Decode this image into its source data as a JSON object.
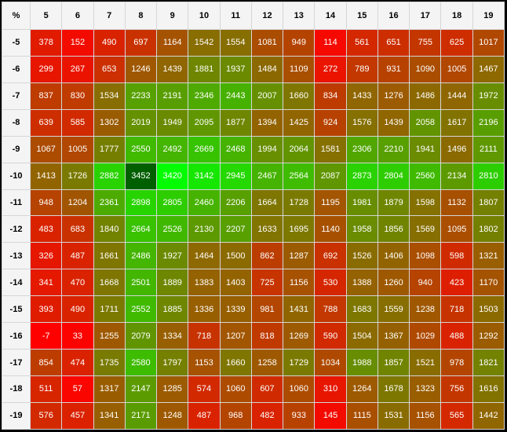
{
  "chart_data": {
    "type": "heatmap",
    "corner_label": "%",
    "x": [
      "5",
      "6",
      "7",
      "8",
      "9",
      "10",
      "11",
      "12",
      "13",
      "14",
      "15",
      "16",
      "17",
      "18",
      "19"
    ],
    "y": [
      "-5",
      "-6",
      "-7",
      "-8",
      "-9",
      "-10",
      "-11",
      "-12",
      "-13",
      "-14",
      "-15",
      "-16",
      "-17",
      "-18",
      "-19"
    ],
    "values": [
      [
        378,
        152,
        490,
        697,
        1164,
        1542,
        1554,
        1081,
        949,
        114,
        561,
        651,
        755,
        625,
        1017
      ],
      [
        299,
        267,
        653,
        1246,
        1439,
        1881,
        1937,
        1484,
        1109,
        272,
        789,
        931,
        1090,
        1005,
        1467
      ],
      [
        837,
        830,
        1534,
        2233,
        2191,
        2346,
        2443,
        2007,
        1660,
        834,
        1433,
        1276,
        1486,
        1444,
        1972
      ],
      [
        639,
        585,
        1302,
        2019,
        1949,
        2095,
        1877,
        1394,
        1425,
        924,
        1576,
        1439,
        2058,
        1617,
        2196
      ],
      [
        1067,
        1005,
        1777,
        2550,
        2492,
        2669,
        2468,
        1994,
        2064,
        1581,
        2306,
        2210,
        1941,
        1496,
        2111
      ],
      [
        1413,
        1726,
        2882,
        3452,
        3420,
        3142,
        2945,
        2467,
        2564,
        2087,
        2873,
        2804,
        2560,
        2134,
        2810
      ],
      [
        948,
        1204,
        2361,
        2898,
        2805,
        2460,
        2206,
        1664,
        1728,
        1195,
        1981,
        1879,
        1598,
        1132,
        1807
      ],
      [
        483,
        683,
        1840,
        2664,
        2526,
        2130,
        2207,
        1633,
        1695,
        1140,
        1958,
        1856,
        1569,
        1095,
        1802
      ],
      [
        326,
        487,
        1661,
        2486,
        1927,
        1464,
        1500,
        862,
        1287,
        692,
        1526,
        1406,
        1098,
        598,
        1321
      ],
      [
        341,
        470,
        1668,
        2501,
        1889,
        1383,
        1403,
        725,
        1156,
        530,
        1388,
        1260,
        940,
        423,
        1170
      ],
      [
        393,
        490,
        1711,
        2552,
        1885,
        1336,
        1339,
        981,
        1431,
        788,
        1683,
        1559,
        1238,
        718,
        1503
      ],
      [
        -7,
        33,
        1255,
        2079,
        1334,
        718,
        1207,
        818,
        1269,
        590,
        1504,
        1367,
        1029,
        488,
        1292
      ],
      [
        854,
        474,
        1735,
        2580,
        1797,
        1153,
        1660,
        1258,
        1729,
        1034,
        1988,
        1857,
        1521,
        978,
        1821
      ],
      [
        511,
        57,
        1317,
        2147,
        1285,
        574,
        1060,
        607,
        1060,
        310,
        1264,
        1678,
        1323,
        756,
        1616
      ],
      [
        576,
        457,
        1341,
        2171,
        1248,
        487,
        968,
        482,
        933,
        145,
        1115,
        1531,
        1156,
        565,
        1442
      ]
    ],
    "color_scale": {
      "low": "#ff0000",
      "mid": "#7a7a00",
      "high": "#00ff00",
      "max_cell": "#006000"
    }
  }
}
